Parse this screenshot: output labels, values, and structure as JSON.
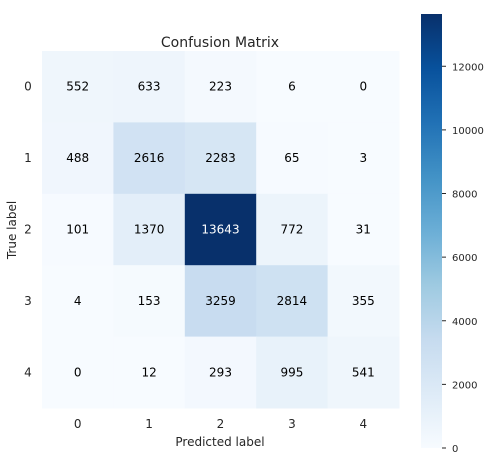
{
  "chart_data": {
    "type": "heatmap",
    "title": "Confusion Matrix",
    "xlabel": "Predicted label",
    "ylabel": "True label",
    "x_categories": [
      "0",
      "1",
      "2",
      "3",
      "4"
    ],
    "y_categories": [
      "0",
      "1",
      "2",
      "3",
      "4"
    ],
    "values": [
      [
        552,
        633,
        223,
        6,
        0
      ],
      [
        488,
        2616,
        2283,
        65,
        3
      ],
      [
        101,
        1370,
        13643,
        772,
        31
      ],
      [
        4,
        153,
        3259,
        2814,
        355
      ],
      [
        0,
        12,
        293,
        995,
        541
      ]
    ],
    "colormap": "Blues",
    "colorbar": {
      "min": 0,
      "max": 13643,
      "ticks": [
        0,
        2000,
        4000,
        6000,
        8000,
        10000,
        12000
      ]
    },
    "grid": false
  }
}
